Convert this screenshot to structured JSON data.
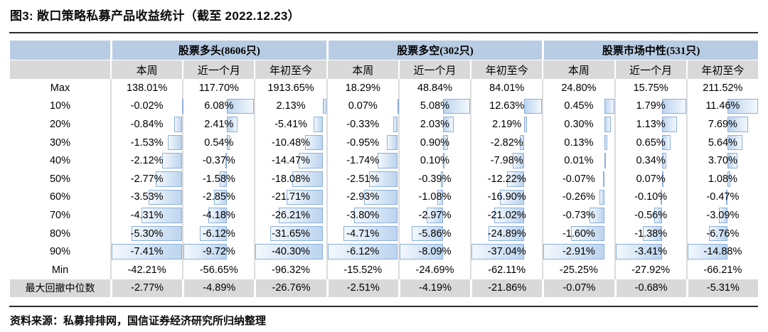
{
  "title": "图3: 敞口策略私募产品收益统计（截至 2022.12.23）",
  "source_note": "资料来源：私募排排网，国信证券经济研究所归纳整理",
  "colors": {
    "group_header_blue": "#B8CCE4",
    "subheader_gray": "#D9D9D9",
    "bar_border_blue": "#8CB0DC",
    "bar_fill_blue": "#BCD4EE"
  },
  "table": {
    "groups": [
      {
        "label": "股票多头(8606只)"
      },
      {
        "label": "股票多空(302只)"
      },
      {
        "label": "股票市场中性(531只)"
      }
    ],
    "sub_headers": [
      "本周",
      "近一个月",
      "年初至今"
    ],
    "rows": [
      {
        "label": "Max",
        "bars": false,
        "gray": false,
        "values": [
          "138.01%",
          "117.70%",
          "1913.65%",
          "18.29%",
          "48.84%",
          "84.01%",
          "24.80%",
          "15.75%",
          "211.52%"
        ]
      },
      {
        "label": "10%",
        "bars": true,
        "gray": false,
        "values": [
          "-0.02%",
          "6.08%",
          "2.13%",
          "0.07%",
          "5.08%",
          "12.63%",
          "0.45%",
          "1.79%",
          "11.46%"
        ]
      },
      {
        "label": "20%",
        "bars": true,
        "gray": false,
        "values": [
          "-0.84%",
          "2.41%",
          "-5.41%",
          "-0.33%",
          "2.03%",
          "2.19%",
          "0.30%",
          "1.13%",
          "7.69%"
        ]
      },
      {
        "label": "30%",
        "bars": true,
        "gray": false,
        "values": [
          "-1.53%",
          "0.54%",
          "-10.48%",
          "-0.95%",
          "0.90%",
          "-2.82%",
          "0.13%",
          "0.65%",
          "5.64%"
        ]
      },
      {
        "label": "40%",
        "bars": true,
        "gray": false,
        "values": [
          "-2.12%",
          "-0.37%",
          "-14.47%",
          "-1.74%",
          "0.10%",
          "-7.98%",
          "0.01%",
          "0.34%",
          "3.70%"
        ]
      },
      {
        "label": "50%",
        "bars": true,
        "gray": false,
        "values": [
          "-2.77%",
          "-1.58%",
          "-18.08%",
          "-2.51%",
          "-0.39%",
          "-12.22%",
          "-0.07%",
          "0.07%",
          "1.08%"
        ]
      },
      {
        "label": "60%",
        "bars": true,
        "gray": false,
        "values": [
          "-3.53%",
          "-2.85%",
          "-21.71%",
          "-2.93%",
          "-1.08%",
          "-16.90%",
          "-0.26%",
          "-0.10%",
          "-0.47%"
        ]
      },
      {
        "label": "70%",
        "bars": true,
        "gray": false,
        "values": [
          "-4.31%",
          "-4.18%",
          "-26.21%",
          "-3.80%",
          "-2.97%",
          "-21.02%",
          "-0.73%",
          "-0.56%",
          "-3.09%"
        ]
      },
      {
        "label": "80%",
        "bars": true,
        "gray": false,
        "values": [
          "-5.30%",
          "-6.12%",
          "-31.65%",
          "-4.71%",
          "-5.86%",
          "-24.89%",
          "-1.60%",
          "-1.38%",
          "-6.76%"
        ]
      },
      {
        "label": "90%",
        "bars": true,
        "gray": false,
        "values": [
          "-7.41%",
          "-9.72%",
          "-40.30%",
          "-6.12%",
          "-8.09%",
          "-37.04%",
          "-2.91%",
          "-3.41%",
          "-14.88%"
        ]
      },
      {
        "label": "Min",
        "bars": false,
        "gray": false,
        "values": [
          "-42.21%",
          "-56.65%",
          "-96.32%",
          "-15.52%",
          "-24.69%",
          "-62.11%",
          "-25.25%",
          "-27.92%",
          "-66.21%"
        ]
      },
      {
        "label": "最大回撤中位数",
        "bars": false,
        "gray": true,
        "values": [
          "-2.77%",
          "-4.89%",
          "-26.76%",
          "-2.51%",
          "-4.19%",
          "-21.86%",
          "-0.07%",
          "-0.68%",
          "-5.31%"
        ]
      }
    ]
  }
}
